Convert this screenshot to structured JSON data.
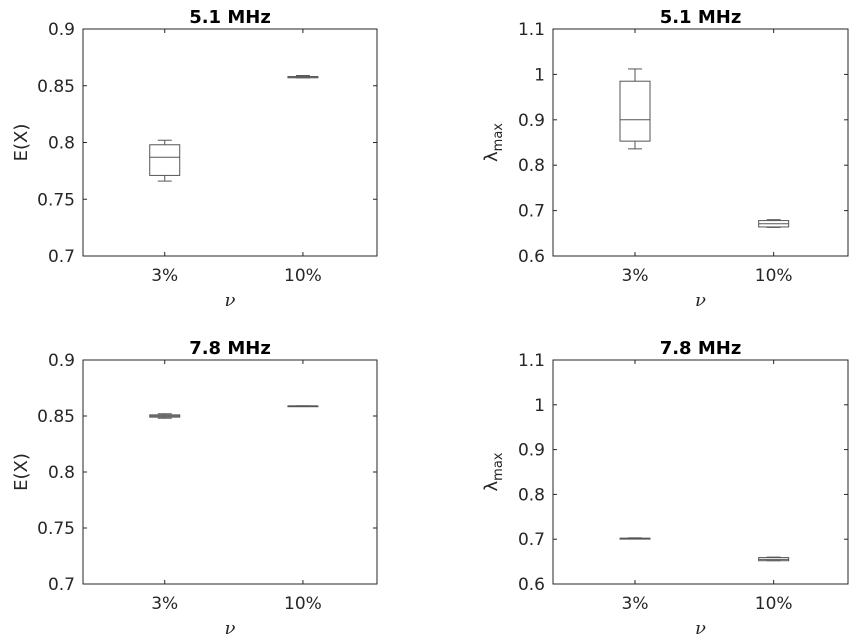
{
  "chart_data": [
    {
      "type": "box",
      "title": "5.1 MHz",
      "ylabel": "E(X)",
      "ylabel_sub": "",
      "xlabel": "ν",
      "categories": [
        "3%",
        "10%"
      ],
      "ylim": [
        0.7,
        0.9
      ],
      "yticks": [
        "0.7",
        "0.75",
        "0.8",
        "0.85",
        "0.9"
      ],
      "ytick_values": [
        0.7,
        0.75,
        0.8,
        0.85,
        0.9
      ],
      "boxes": [
        {
          "category": "3%",
          "min": 0.766,
          "q1": 0.771,
          "median": 0.787,
          "q3": 0.798,
          "max": 0.802
        },
        {
          "category": "10%",
          "min": 0.857,
          "q1": 0.857,
          "median": 0.858,
          "q3": 0.858,
          "max": 0.859
        }
      ]
    },
    {
      "type": "box",
      "title": "5.1 MHz",
      "ylabel": "λ",
      "ylabel_sub": "max",
      "xlabel": "ν",
      "categories": [
        "3%",
        "10%"
      ],
      "ylim": [
        0.6,
        1.1
      ],
      "yticks": [
        "0.6",
        "0.7",
        "0.8",
        "0.9",
        "1",
        "1.1"
      ],
      "ytick_values": [
        0.6,
        0.7,
        0.8,
        0.9,
        1.0,
        1.1
      ],
      "boxes": [
        {
          "category": "3%",
          "min": 0.836,
          "q1": 0.853,
          "median": 0.9,
          "q3": 0.985,
          "max": 1.012
        },
        {
          "category": "10%",
          "min": 0.663,
          "q1": 0.664,
          "median": 0.671,
          "q3": 0.678,
          "max": 0.68
        }
      ]
    },
    {
      "type": "box",
      "title": "7.8 MHz",
      "ylabel": "E(X)",
      "ylabel_sub": "",
      "xlabel": "ν",
      "categories": [
        "3%",
        "10%"
      ],
      "ylim": [
        0.7,
        0.9
      ],
      "yticks": [
        "0.7",
        "0.75",
        "0.8",
        "0.85",
        "0.9"
      ],
      "ytick_values": [
        0.7,
        0.75,
        0.8,
        0.85,
        0.9
      ],
      "boxes": [
        {
          "category": "3%",
          "min": 0.848,
          "q1": 0.849,
          "median": 0.85,
          "q3": 0.851,
          "max": 0.852
        },
        {
          "category": "10%",
          "min": 0.859,
          "q1": 0.859,
          "median": 0.859,
          "q3": 0.859,
          "max": 0.859
        }
      ]
    },
    {
      "type": "box",
      "title": "7.8 MHz",
      "ylabel": "λ",
      "ylabel_sub": "max",
      "xlabel": "ν",
      "categories": [
        "3%",
        "10%"
      ],
      "ylim": [
        0.6,
        1.1
      ],
      "yticks": [
        "0.6",
        "0.7",
        "0.8",
        "0.9",
        "1",
        "1.1"
      ],
      "ytick_values": [
        0.6,
        0.7,
        0.8,
        0.9,
        1.0,
        1.1
      ],
      "boxes": [
        {
          "category": "3%",
          "min": 0.701,
          "q1": 0.701,
          "median": 0.702,
          "q3": 0.702,
          "max": 0.703
        },
        {
          "category": "10%",
          "min": 0.652,
          "q1": 0.652,
          "median": 0.655,
          "q3": 0.659,
          "max": 0.66
        }
      ]
    }
  ]
}
